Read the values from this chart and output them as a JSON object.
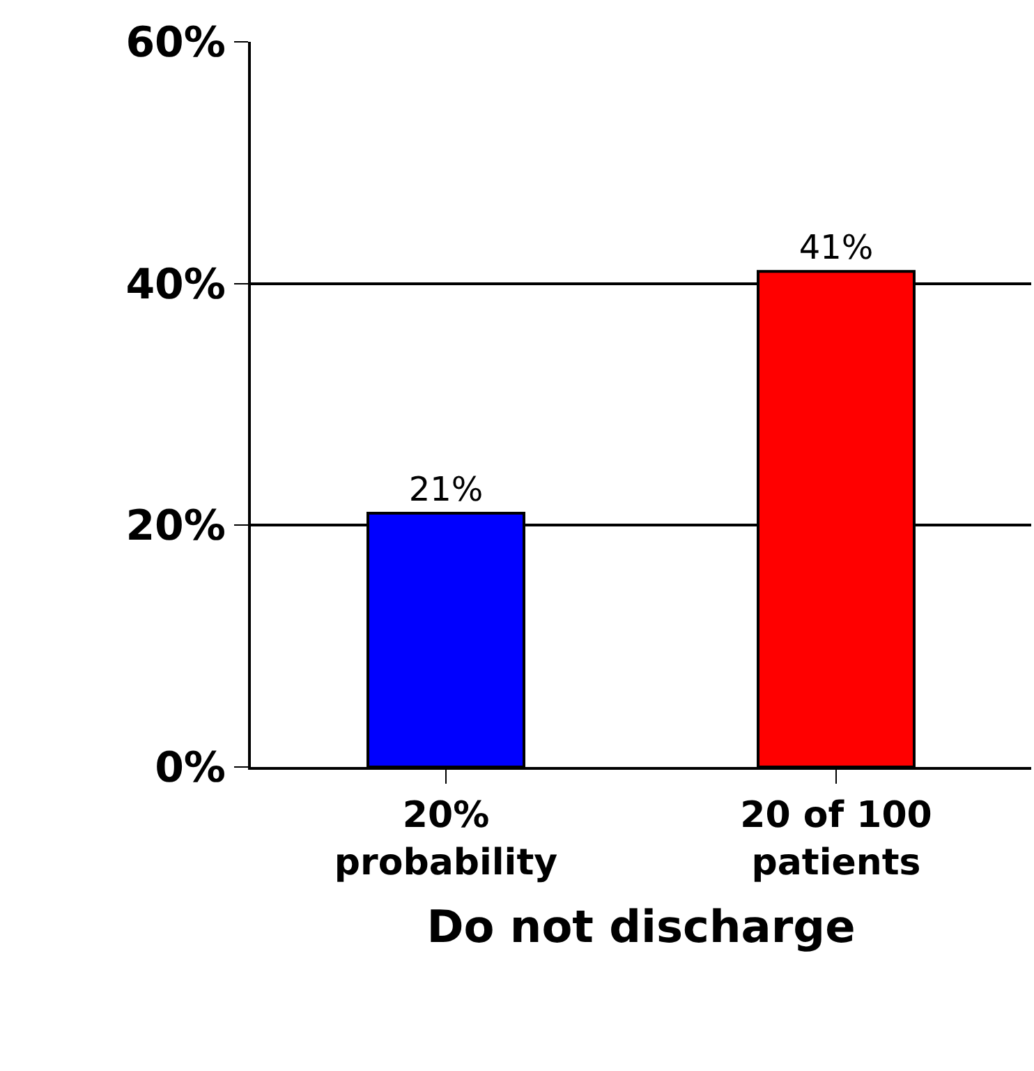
{
  "chart_data": {
    "type": "bar",
    "xlabel": "Do not discharge",
    "categories": [
      "20%\nprobability",
      "20 of 100\npatients"
    ],
    "values": [
      21,
      41
    ],
    "colors": [
      "#0000ff",
      "#ff0000"
    ],
    "value_labels": [
      "21%",
      "41%"
    ],
    "ylim": [
      0,
      60
    ],
    "yticks": [
      {
        "value": 0,
        "label": "0%"
      },
      {
        "value": 20,
        "label": "20%"
      },
      {
        "value": 40,
        "label": "40%"
      },
      {
        "value": 60,
        "label": "60%"
      }
    ],
    "grid": "y",
    "legend": false
  }
}
